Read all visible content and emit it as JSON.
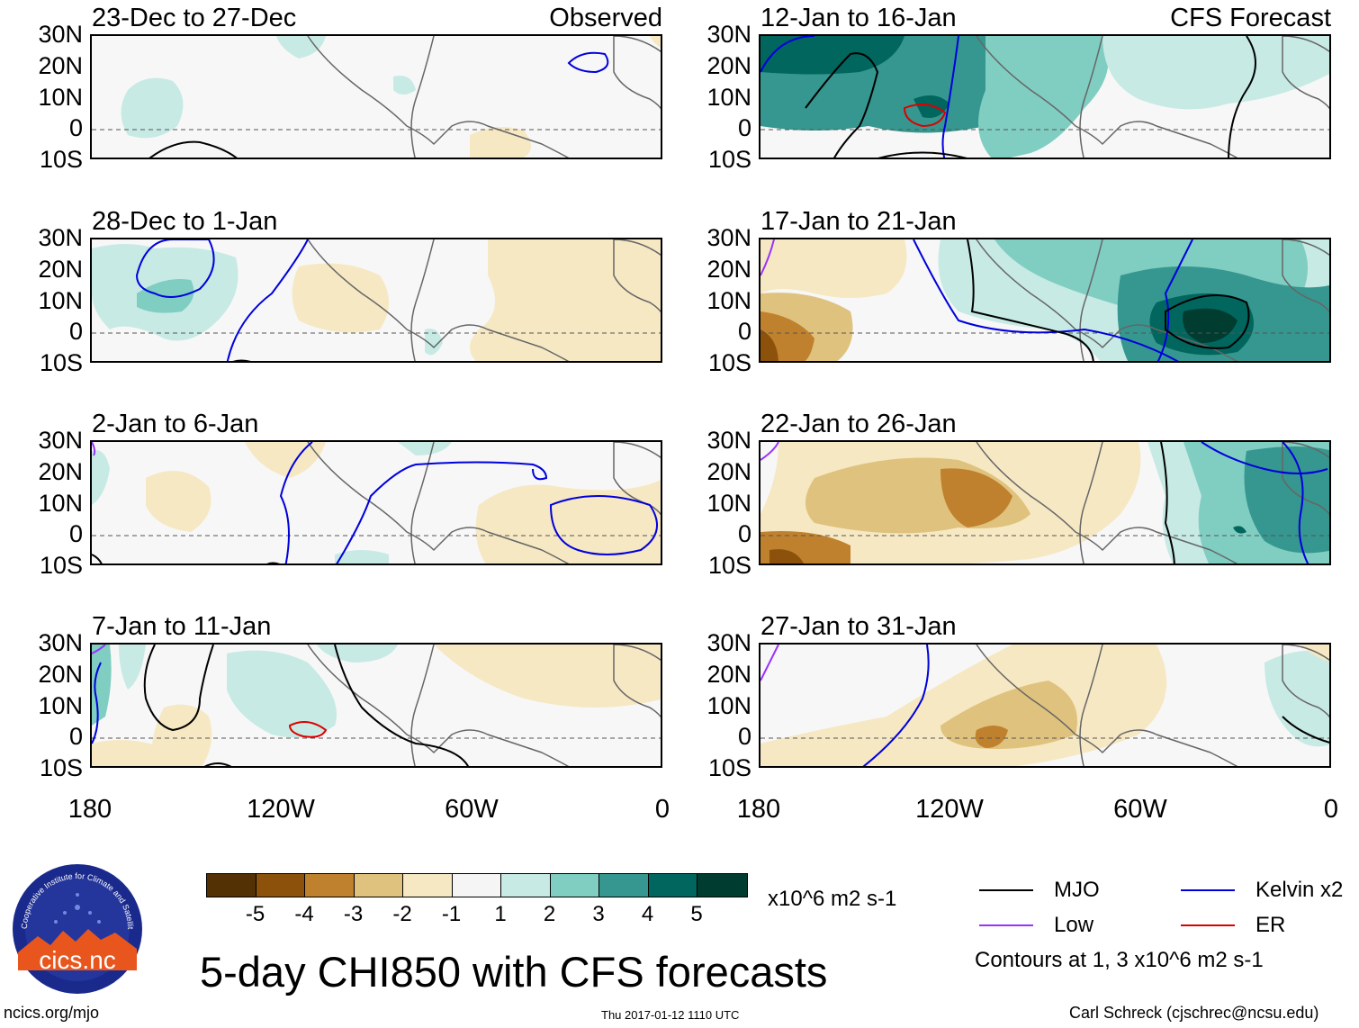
{
  "title": "5-day CHI850 with CFS forecasts",
  "footer": {
    "left": "ncics.org/mjo",
    "center": "Thu 2017-01-12 1110 UTC",
    "right": "Carl Schreck (cjschrec@ncsu.edu)"
  },
  "logo": {
    "name": "cics.nc",
    "ring_text": "Cooperative Institute for Climate and Satellites"
  },
  "labels": {
    "observed": "Observed",
    "forecast": "CFS Forecast"
  },
  "chart_data": {
    "type": "heatmap",
    "variable": "CHI850",
    "ylabels": [
      "30N",
      "20N",
      "10N",
      "0",
      "10S"
    ],
    "xlabels": [
      "180",
      "120W",
      "60W",
      "0"
    ],
    "ylim": [
      -10,
      30
    ],
    "xlim": [
      180,
      0
    ],
    "panels": [
      {
        "column": "left",
        "row": 0,
        "title": "23-Dec to 27-Dec",
        "tag": "Observed"
      },
      {
        "column": "left",
        "row": 1,
        "title": "28-Dec to 1-Jan"
      },
      {
        "column": "left",
        "row": 2,
        "title": "2-Jan to 6-Jan"
      },
      {
        "column": "left",
        "row": 3,
        "title": "7-Jan to 11-Jan"
      },
      {
        "column": "right",
        "row": 0,
        "title": "12-Jan to 16-Jan",
        "tag": "CFS Forecast"
      },
      {
        "column": "right",
        "row": 1,
        "title": "17-Jan to 21-Jan"
      },
      {
        "column": "right",
        "row": 2,
        "title": "22-Jan to 26-Jan"
      },
      {
        "column": "right",
        "row": 3,
        "title": "27-Jan to 31-Jan"
      }
    ],
    "colorbar": {
      "labels": [
        "-5",
        "-4",
        "-3",
        "-2",
        "-1",
        "1",
        "2",
        "3",
        "4",
        "5"
      ],
      "colors": [
        "#543005",
        "#8c510a",
        "#bf812d",
        "#dfc27d",
        "#f6e8c3",
        "#f5f5f5",
        "#c7eae5",
        "#80cdc1",
        "#35978f",
        "#01665e",
        "#003c30"
      ],
      "units": "x10^6 m2 s-1"
    },
    "legend": [
      {
        "label": "MJO",
        "color": "#000000"
      },
      {
        "label": "Kelvin x2",
        "color": "#0000dd"
      },
      {
        "label": "Low",
        "color": "#9933ff"
      },
      {
        "label": "ER",
        "color": "#dd0000"
      }
    ],
    "contours_note": "Contours at 1, 3 x10^6 m2 s-1"
  }
}
